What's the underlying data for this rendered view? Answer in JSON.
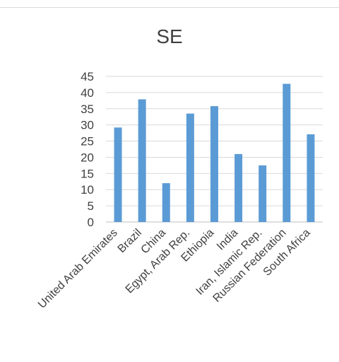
{
  "chart_data": {
    "type": "bar",
    "title": "SE",
    "xlabel": "",
    "ylabel": "",
    "ylim": [
      0,
      45
    ],
    "yticks": [
      0,
      5,
      10,
      15,
      20,
      25,
      30,
      35,
      40,
      45
    ],
    "grid": true,
    "legend": "none",
    "bar_color": "#5b9bd5",
    "categories": [
      "United Arab Emirates",
      "Brazil",
      "China",
      "Egypt, Arab Rep.",
      "Ethiopia",
      "India",
      "Iran, Islamic Rep.",
      "Russian Federation",
      "South Africa"
    ],
    "values": [
      29.2,
      37.9,
      12.0,
      33.5,
      35.8,
      21.0,
      17.5,
      42.7,
      27.1
    ]
  }
}
